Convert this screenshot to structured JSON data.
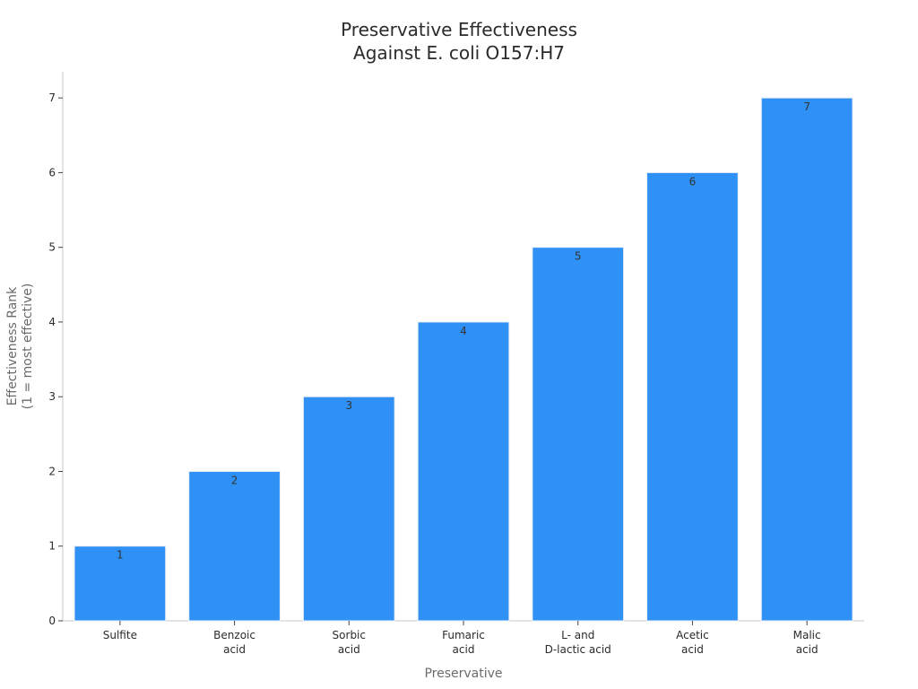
{
  "chart_data": {
    "type": "bar",
    "title": [
      "Preservative Effectiveness",
      "Against E. coli O157:H7"
    ],
    "xlabel": "Preservative",
    "ylabel": [
      "Effectiveness Rank",
      "(1 = most effective)"
    ],
    "categories": [
      [
        "Sulfite"
      ],
      [
        "Benzoic",
        "acid"
      ],
      [
        "Sorbic",
        "acid"
      ],
      [
        "Fumaric",
        "acid"
      ],
      [
        "L- and",
        "D-lactic acid"
      ],
      [
        "Acetic",
        "acid"
      ],
      [
        "Malic",
        "acid"
      ]
    ],
    "values": [
      1,
      2,
      3,
      4,
      5,
      6,
      7
    ],
    "data_labels": [
      "1",
      "2",
      "3",
      "4",
      "5",
      "6",
      "7"
    ],
    "ylim": [
      0,
      7.35
    ],
    "yticks": [
      0,
      1,
      2,
      3,
      4,
      5,
      6,
      7
    ],
    "bar_color": "#2f91f6",
    "bar_edge_color": "#e8eef6",
    "axis_color": "#c8c8c8",
    "grid": false,
    "legend": "none"
  }
}
